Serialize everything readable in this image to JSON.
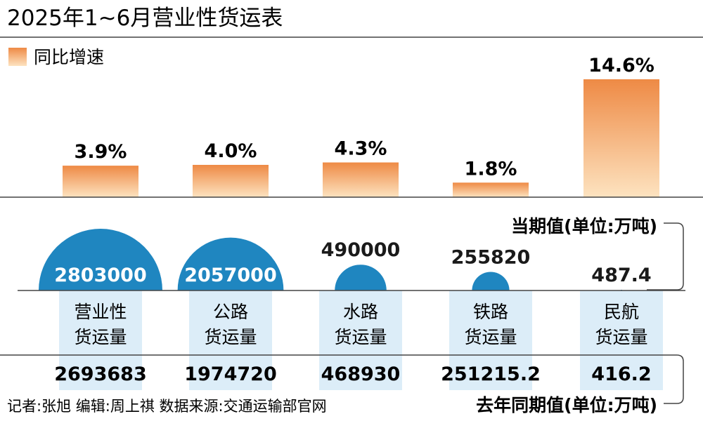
{
  "title": "2025年1~6月营业性货运表",
  "credit": "记者:张旭  编辑:周上祺  数据来源:交通运输部官网",
  "colors": {
    "bar_top": "#ee8a45",
    "bar_bottom": "#fde3c0",
    "semicircle": "#1f86c0",
    "category_box": "#dcedf8",
    "baseline": "#444444"
  },
  "chart_data": {
    "type": "bar",
    "categories": [
      [
        "营业性",
        "货运量"
      ],
      [
        "公路",
        "货运量"
      ],
      [
        "水路",
        "货运量"
      ],
      [
        "铁路",
        "货运量"
      ],
      [
        "民航",
        "货运量"
      ]
    ],
    "series": [
      {
        "name": "同比增速",
        "values": [
          3.9,
          4.0,
          4.3,
          1.8,
          14.6
        ],
        "labels": [
          "3.9%",
          "4.0%",
          "4.3%",
          "1.8%",
          "14.6%"
        ]
      }
    ],
    "ylim": [
      0,
      14.6
    ],
    "current": {
      "label": "当期值(单位:万吨)",
      "values": [
        2803000,
        2057000,
        490000,
        255820,
        487.4
      ],
      "labels": [
        "2803000",
        "2057000",
        "490000",
        "255820",
        "487.4"
      ]
    },
    "previous": {
      "label": "去年同期值(单位:万吨)",
      "labels": [
        "2693683",
        "1974720",
        "468930",
        "251215.2",
        "416.2"
      ]
    }
  }
}
